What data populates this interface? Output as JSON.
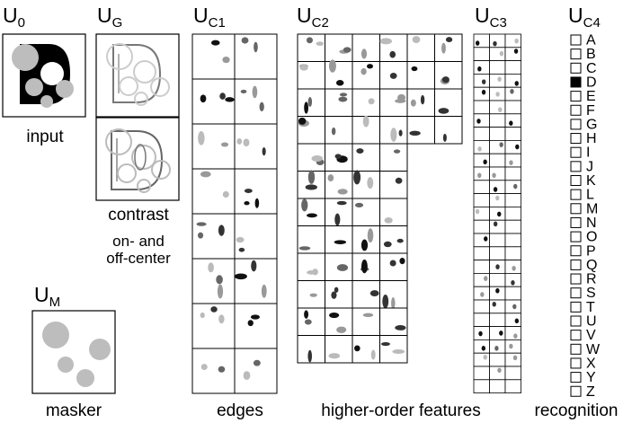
{
  "headers": {
    "u0": {
      "base": "U",
      "sub": "0"
    },
    "ug": {
      "base": "U",
      "sub": "G"
    },
    "uc1": {
      "base": "U",
      "sub": "C1"
    },
    "uc2": {
      "base": "U",
      "sub": "C2"
    },
    "uc3": {
      "base": "U",
      "sub": "C3"
    },
    "uc4": {
      "base": "U",
      "sub": "C4"
    },
    "um": {
      "base": "U",
      "sub": "M"
    }
  },
  "captions": {
    "input": "input",
    "contrast": "contrast",
    "on_off_1": "on- and",
    "on_off_2": "off-center",
    "masker": "masker",
    "edges": "edges",
    "higher_order": "higher-order features",
    "recognition": "recognition"
  },
  "recognition": {
    "letters": [
      "A",
      "B",
      "C",
      "D",
      "E",
      "F",
      "G",
      "H",
      "I",
      "J",
      "K",
      "L",
      "M",
      "N",
      "O",
      "P",
      "Q",
      "R",
      "S",
      "T",
      "U",
      "V",
      "W",
      "X",
      "Y",
      "Z"
    ],
    "active": "D"
  }
}
